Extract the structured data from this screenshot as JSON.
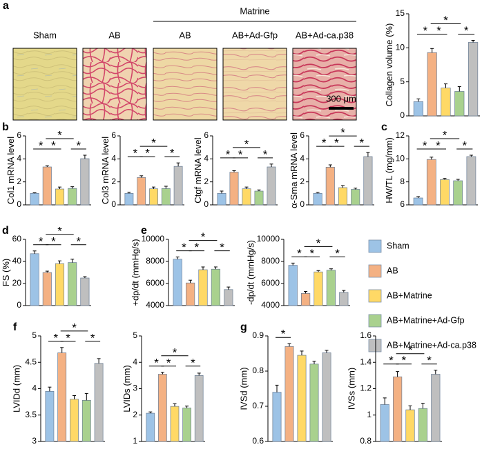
{
  "micrographs": {
    "panel": "a",
    "group": "Matrine",
    "labels": [
      "Sham",
      "AB",
      "AB",
      "AB+Ad-Gfp",
      "AB+Ad-ca.p38"
    ],
    "scale_bar": "300 μm"
  },
  "legend": {
    "names": [
      "Sham",
      "AB",
      "AB+Matrine",
      "AB+Matrine+Ad-Gfp",
      "AB+Matrine+Ad-ca.p38"
    ],
    "colors": [
      "#9dc3e6",
      "#f4b183",
      "#ffd966",
      "#a9d18e",
      "#bfbfbf"
    ]
  },
  "chart_data": [
    {
      "type": "bar",
      "y_label": "Collagen volume (%)",
      "values": [
        2.1,
        9.3,
        4.1,
        3.6,
        10.8
      ],
      "errors": [
        0.4,
        0.6,
        0.6,
        0.7,
        0.3
      ],
      "ylim": [
        0,
        15
      ],
      "yticks": [
        0,
        5,
        10,
        15
      ],
      "comparisons": [
        {
          "between": [
            "Sham",
            "AB"
          ],
          "label": "*"
        },
        {
          "between": [
            "AB",
            "AB+Matrine"
          ],
          "label": "*"
        },
        {
          "between": [
            "AB",
            "AB+Matrine+Ad-Gfp"
          ],
          "label": "*"
        },
        {
          "between": [
            "AB+Matrine+Ad-Gfp",
            "AB+Matrine+Ad-ca.p38"
          ],
          "label": "*"
        }
      ]
    },
    {
      "type": "bar",
      "panel": "b",
      "y_label": "Col1 mRNA level",
      "values": [
        1.0,
        3.3,
        1.38,
        1.43,
        4.02
      ],
      "errors": [
        0.05,
        0.1,
        0.17,
        0.15,
        0.3
      ],
      "ylim": [
        0,
        6
      ],
      "yticks": [
        0,
        2,
        4,
        6
      ],
      "comparisons": [
        {
          "between": [
            "Sham",
            "AB"
          ],
          "label": "*"
        },
        {
          "between": [
            "AB",
            "AB+Matrine"
          ],
          "label": "*"
        },
        {
          "between": [
            "AB",
            "AB+Matrine+Ad-Gfp"
          ],
          "label": "*"
        },
        {
          "between": [
            "AB+Matrine+Ad-Gfp",
            "AB+Matrine+Ad-ca.p38"
          ],
          "label": "*"
        }
      ]
    },
    {
      "type": "bar",
      "y_label": "Col3 mRNA level",
      "values": [
        1.0,
        2.38,
        1.4,
        1.42,
        3.35
      ],
      "errors": [
        0.1,
        0.15,
        0.15,
        0.2,
        0.3
      ],
      "ylim": [
        0,
        6
      ],
      "yticks": [
        0,
        2,
        4,
        6
      ],
      "comparisons": [
        {
          "between": [
            "Sham",
            "AB"
          ],
          "label": "*"
        },
        {
          "between": [
            "AB",
            "AB+Matrine"
          ],
          "label": "*"
        },
        {
          "between": [
            "AB",
            "AB+Matrine+Ad-Gfp"
          ],
          "label": "*"
        },
        {
          "between": [
            "AB+Matrine+Ad-Gfp",
            "AB+Matrine+Ad-ca.p38"
          ],
          "label": "*"
        }
      ]
    },
    {
      "type": "bar",
      "y_label": "Ctgf mRNA level",
      "values": [
        1.0,
        2.85,
        1.4,
        1.2,
        3.3
      ],
      "errors": [
        0.2,
        0.12,
        0.15,
        0.1,
        0.25
      ],
      "ylim": [
        0,
        6
      ],
      "yticks": [
        0,
        2,
        4,
        6
      ],
      "comparisons": [
        {
          "between": [
            "Sham",
            "AB"
          ],
          "label": "*"
        },
        {
          "between": [
            "AB",
            "AB+Matrine"
          ],
          "label": "*"
        },
        {
          "between": [
            "AB",
            "AB+Matrine+Ad-Gfp"
          ],
          "label": "*"
        },
        {
          "between": [
            "AB+Matrine+Ad-Gfp",
            "AB+Matrine+Ad-ca.p38"
          ],
          "label": "*"
        }
      ]
    },
    {
      "type": "bar",
      "y_label": "α-Sma mRNA level",
      "values": [
        1.0,
        3.28,
        1.5,
        1.35,
        4.2
      ],
      "errors": [
        0.08,
        0.2,
        0.18,
        0.1,
        0.35
      ],
      "ylim": [
        0,
        6
      ],
      "yticks": [
        0,
        2,
        4,
        6
      ],
      "comparisons": [
        {
          "between": [
            "Sham",
            "AB"
          ],
          "label": "*"
        },
        {
          "between": [
            "AB",
            "AB+Matrine"
          ],
          "label": "*"
        },
        {
          "between": [
            "AB",
            "AB+Matrine+Ad-Gfp"
          ],
          "label": "*"
        },
        {
          "between": [
            "AB+Matrine+Ad-Gfp",
            "AB+Matrine+Ad-ca.p38"
          ],
          "label": "*"
        }
      ]
    },
    {
      "type": "bar",
      "panel": "c",
      "y_label": "HW/TL (mg/mm)",
      "values": [
        6.6,
        9.95,
        8.2,
        8.1,
        10.2
      ],
      "errors": [
        0.12,
        0.2,
        0.1,
        0.12,
        0.12
      ],
      "ylim": [
        6,
        12
      ],
      "yticks": [
        6,
        8,
        10,
        12
      ],
      "comparisons": [
        {
          "between": [
            "Sham",
            "AB"
          ],
          "label": "*"
        },
        {
          "between": [
            "AB",
            "AB+Matrine"
          ],
          "label": "*"
        },
        {
          "between": [
            "AB",
            "AB+Matrine+Ad-Gfp"
          ],
          "label": "*"
        },
        {
          "between": [
            "AB+Matrine+Ad-Gfp",
            "AB+Matrine+Ad-ca.p38"
          ],
          "label": "*"
        }
      ]
    },
    {
      "type": "bar",
      "panel": "d",
      "y_label": "FS (%)",
      "values": [
        47,
        30,
        38,
        39,
        25
      ],
      "errors": [
        2.5,
        1.2,
        2.5,
        3,
        1.2
      ],
      "ylim": [
        0,
        60
      ],
      "yticks": [
        0,
        20,
        40,
        60
      ],
      "comparisons": [
        {
          "between": [
            "Sham",
            "AB"
          ],
          "label": "*"
        },
        {
          "between": [
            "AB",
            "AB+Matrine"
          ],
          "label": "*"
        },
        {
          "between": [
            "AB",
            "AB+Matrine+Ad-Gfp"
          ],
          "label": "*"
        },
        {
          "between": [
            "AB+Matrine+Ad-Gfp",
            "AB+Matrine+Ad-ca.p38"
          ],
          "label": "*"
        }
      ]
    },
    {
      "type": "bar",
      "panel": "e",
      "y_label": "+dp/dt (mmHg/s)",
      "values": [
        8200,
        6050,
        7250,
        7300,
        5450
      ],
      "errors": [
        200,
        250,
        250,
        200,
        230
      ],
      "ylim": [
        4000,
        10000
      ],
      "yticks": [
        4000,
        6000,
        8000,
        10000
      ],
      "comparisons": [
        {
          "between": [
            "Sham",
            "AB"
          ],
          "label": "*"
        },
        {
          "between": [
            "AB",
            "AB+Matrine"
          ],
          "label": "*"
        },
        {
          "between": [
            "AB",
            "AB+Matrine+Ad-Gfp"
          ],
          "label": "*"
        },
        {
          "between": [
            "AB+Matrine+Ad-Gfp",
            "AB+Matrine+Ad-ca.p38"
          ],
          "label": "*"
        }
      ]
    },
    {
      "type": "bar",
      "y_label": "-dp/dt (mmHg/s)",
      "values": [
        7650,
        5100,
        7050,
        7200,
        5200
      ],
      "errors": [
        200,
        180,
        120,
        130,
        170
      ],
      "ylim": [
        4000,
        10000
      ],
      "yticks": [
        4000,
        6000,
        8000,
        10000
      ],
      "comparisons": [
        {
          "between": [
            "Sham",
            "AB"
          ],
          "label": "*"
        },
        {
          "between": [
            "AB",
            "AB+Matrine"
          ],
          "label": "*"
        },
        {
          "between": [
            "AB",
            "AB+Matrine+Ad-Gfp"
          ],
          "label": "*"
        },
        {
          "between": [
            "AB+Matrine+Ad-Gfp",
            "AB+Matrine+Ad-ca.p38"
          ],
          "label": "*"
        }
      ]
    },
    {
      "type": "bar",
      "panel": "f",
      "y_label": "LVIDd (mm)",
      "values": [
        3.95,
        4.68,
        3.8,
        3.78,
        4.48
      ],
      "errors": [
        0.08,
        0.1,
        0.07,
        0.13,
        0.09
      ],
      "ylim": [
        3,
        5
      ],
      "yticks": [
        3,
        3.5,
        4,
        4.5,
        5
      ],
      "comparisons": [
        {
          "between": [
            "Sham",
            "AB"
          ],
          "label": "*"
        },
        {
          "between": [
            "AB",
            "AB+Matrine"
          ],
          "label": "*"
        },
        {
          "between": [
            "AB",
            "AB+Matrine+Ad-Gfp"
          ],
          "label": "*"
        },
        {
          "between": [
            "AB+Matrine+Ad-Gfp",
            "AB+Matrine+Ad-ca.p38"
          ],
          "label": "*"
        }
      ]
    },
    {
      "type": "bar",
      "y_label": "LVIDs (mm)",
      "values": [
        2.07,
        3.55,
        2.33,
        2.27,
        3.5
      ],
      "errors": [
        0.05,
        0.07,
        0.1,
        0.07,
        0.09
      ],
      "ylim": [
        1,
        5
      ],
      "yticks": [
        1,
        2,
        3,
        4,
        5
      ],
      "comparisons": [
        {
          "between": [
            "Sham",
            "AB"
          ],
          "label": "*"
        },
        {
          "between": [
            "AB",
            "AB+Matrine"
          ],
          "label": "*"
        },
        {
          "between": [
            "AB",
            "AB+Matrine+Ad-Gfp"
          ],
          "label": "*"
        },
        {
          "between": [
            "AB+Matrine+Ad-Gfp",
            "AB+Matrine+Ad-ca.p38"
          ],
          "label": "*"
        }
      ]
    },
    {
      "type": "bar",
      "panel": "g",
      "y_label": "IVSd (mm)",
      "values": [
        0.74,
        0.87,
        0.845,
        0.82,
        0.852
      ],
      "errors": [
        0.02,
        0.008,
        0.012,
        0.008,
        0.007
      ],
      "ylim": [
        0.6,
        0.9
      ],
      "yticks": [
        0.6,
        0.7,
        0.8,
        0.9
      ],
      "comparisons": [
        {
          "between": [
            "Sham",
            "AB"
          ],
          "label": "*"
        }
      ]
    },
    {
      "type": "bar",
      "y_label": "IVSs (mm)",
      "values": [
        1.08,
        1.29,
        1.04,
        1.05,
        1.31
      ],
      "errors": [
        0.05,
        0.04,
        0.03,
        0.04,
        0.03
      ],
      "ylim": [
        0.8,
        1.6
      ],
      "yticks": [
        0.8,
        1,
        1.2,
        1.4,
        1.6
      ],
      "comparisons": [
        {
          "between": [
            "Sham",
            "AB"
          ],
          "label": "*"
        },
        {
          "between": [
            "AB",
            "AB+Matrine"
          ],
          "label": "*"
        },
        {
          "between": [
            "AB",
            "AB+Matrine+Ad-Gfp"
          ],
          "label": "*"
        },
        {
          "between": [
            "AB+Matrine+Ad-Gfp",
            "AB+Matrine+Ad-ca.p38"
          ],
          "label": "*"
        }
      ]
    }
  ]
}
